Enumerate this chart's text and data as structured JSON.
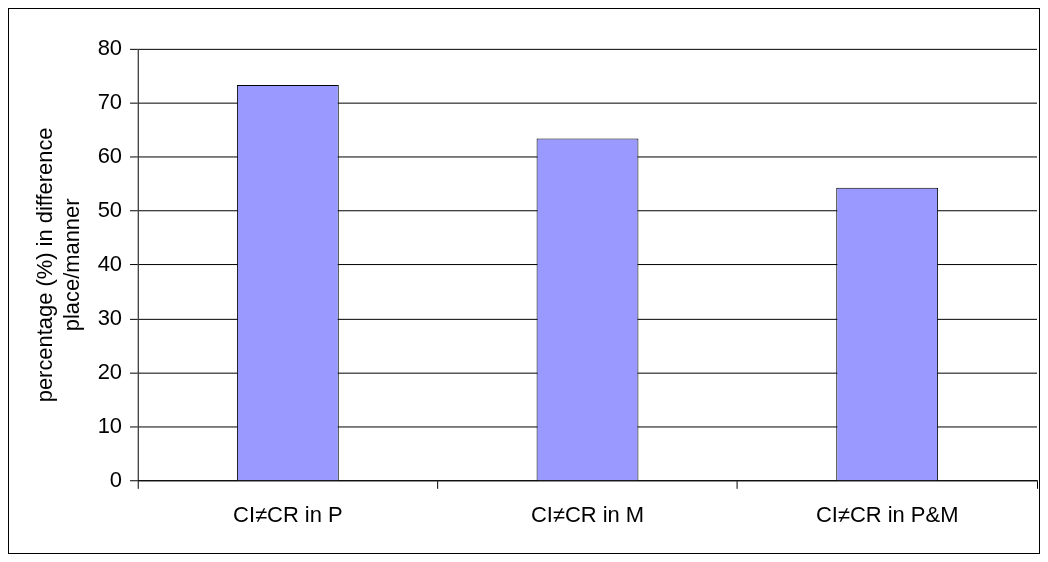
{
  "chart_data": {
    "type": "bar",
    "ylabel": "percentage (%) in difference place/manner",
    "categories": [
      "CI≠CR in P",
      "CI≠CR in M",
      "CI≠CR in P&M"
    ],
    "values": [
      73.3,
      63.4,
      54.3
    ],
    "color": "#9999ff",
    "ylim": [
      0,
      80
    ],
    "yticks": [
      0,
      10,
      20,
      30,
      40,
      50,
      60,
      70,
      80
    ],
    "grid": "y"
  }
}
